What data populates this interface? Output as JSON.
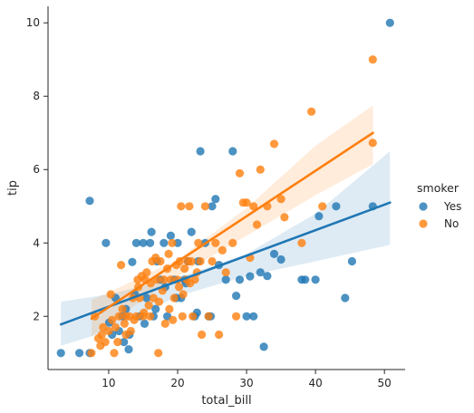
{
  "chart_data": {
    "type": "scatter",
    "title": "",
    "xlabel": "total_bill",
    "ylabel": "tip",
    "xlim": [
      1.2,
      53.0
    ],
    "ylim": [
      0.55,
      10.45
    ],
    "xticks": [
      10,
      20,
      30,
      40,
      50
    ],
    "yticks": [
      2,
      4,
      6,
      8,
      10
    ],
    "grid": false,
    "legend": {
      "title": "smoker",
      "placement": "right",
      "entries": [
        "Yes",
        "No"
      ]
    },
    "colors": {
      "Yes": "#1f77b4",
      "No": "#ff7f0e"
    },
    "series": [
      {
        "name": "Yes",
        "color": "#1f77b4",
        "points": [
          [
            3.07,
            1.0
          ],
          [
            5.75,
            1.0
          ],
          [
            7.25,
            5.15
          ],
          [
            9.6,
            4.0
          ],
          [
            7.25,
            1.0
          ],
          [
            10.07,
            1.83
          ],
          [
            12.9,
            1.1
          ],
          [
            13.42,
            3.48
          ],
          [
            14.0,
            4.0
          ],
          [
            15.0,
            4.0
          ],
          [
            16.0,
            4.0
          ],
          [
            16.2,
            4.3
          ],
          [
            17.0,
            3.5
          ],
          [
            18.0,
            4.0
          ],
          [
            19.0,
            4.2
          ],
          [
            20.0,
            4.0
          ],
          [
            21.0,
            3.0
          ],
          [
            22.0,
            4.3
          ],
          [
            23.0,
            3.5
          ],
          [
            23.3,
            6.5
          ],
          [
            24.0,
            4.0
          ],
          [
            24.5,
            2.0
          ],
          [
            25.0,
            5.0
          ],
          [
            25.5,
            5.2
          ],
          [
            26.0,
            3.4
          ],
          [
            27.0,
            3.0
          ],
          [
            28.0,
            6.5
          ],
          [
            28.5,
            2.56
          ],
          [
            29.0,
            3.0
          ],
          [
            30.0,
            2.0
          ],
          [
            30.5,
            3.09
          ],
          [
            31.0,
            2.0
          ],
          [
            32.0,
            3.2
          ],
          [
            32.5,
            1.17
          ],
          [
            33.0,
            3.1
          ],
          [
            34.0,
            3.7
          ],
          [
            35.0,
            3.55
          ],
          [
            38.0,
            3.0
          ],
          [
            38.5,
            3.0
          ],
          [
            40.0,
            3.0
          ],
          [
            40.5,
            4.73
          ],
          [
            43.0,
            5.0
          ],
          [
            44.3,
            2.5
          ],
          [
            45.3,
            3.5
          ],
          [
            48.3,
            5.0
          ],
          [
            50.8,
            10.0
          ],
          [
            11.0,
            2.5
          ],
          [
            12.0,
            2.0
          ],
          [
            13.0,
            1.5
          ],
          [
            14.5,
            2.0
          ],
          [
            15.5,
            2.5
          ],
          [
            16.5,
            2.0
          ],
          [
            17.5,
            3.0
          ],
          [
            18.5,
            2.0
          ],
          [
            19.5,
            3.0
          ],
          [
            20.5,
            2.5
          ],
          [
            21.5,
            3.5
          ],
          [
            22.5,
            2.0
          ],
          [
            12.5,
            2.2
          ],
          [
            13.8,
            2.6
          ],
          [
            15.2,
            1.8
          ],
          [
            16.8,
            2.2
          ],
          [
            18.2,
            2.8
          ],
          [
            19.8,
            2.5
          ],
          [
            21.2,
            2.9
          ],
          [
            22.8,
            2.1
          ],
          [
            24.8,
            2.0
          ],
          [
            10.5,
            1.5
          ],
          [
            11.5,
            1.6
          ],
          [
            12.2,
            1.3
          ]
        ],
        "fit": {
          "x": [
            3.07,
            50.81
          ],
          "y": [
            1.78,
            5.1
          ]
        }
      },
      {
        "name": "No",
        "color": "#ff7f0e",
        "points": [
          [
            7.5,
            1.0
          ],
          [
            8.0,
            2.0
          ],
          [
            8.5,
            1.4
          ],
          [
            9.0,
            1.5
          ],
          [
            9.5,
            1.3
          ],
          [
            10.0,
            1.6
          ],
          [
            10.3,
            2.6
          ],
          [
            10.5,
            1.9
          ],
          [
            11.0,
            1.7
          ],
          [
            11.5,
            2.0
          ],
          [
            11.8,
            3.4
          ],
          [
            12.0,
            2.2
          ],
          [
            12.5,
            1.5
          ],
          [
            13.0,
            2.0
          ],
          [
            13.5,
            2.5
          ],
          [
            14.0,
            2.0
          ],
          [
            14.2,
            3.0
          ],
          [
            14.5,
            2.5
          ],
          [
            15.0,
            2.0
          ],
          [
            15.3,
            3.0
          ],
          [
            15.5,
            3.2
          ],
          [
            16.0,
            2.0
          ],
          [
            16.3,
            3.5
          ],
          [
            16.5,
            2.5
          ],
          [
            17.0,
            3.0
          ],
          [
            17.2,
            1.0
          ],
          [
            17.5,
            3.5
          ],
          [
            18.0,
            3.0
          ],
          [
            18.2,
            1.8
          ],
          [
            18.5,
            3.3
          ],
          [
            19.0,
            3.0
          ],
          [
            19.2,
            4.0
          ],
          [
            19.5,
            2.5
          ],
          [
            20.0,
            3.0
          ],
          [
            20.3,
            3.5
          ],
          [
            20.5,
            5.0
          ],
          [
            20.7,
            2.0
          ],
          [
            21.0,
            3.3
          ],
          [
            21.3,
            3.0
          ],
          [
            21.5,
            3.5
          ],
          [
            21.7,
            5.0
          ],
          [
            22.0,
            3.5
          ],
          [
            22.2,
            2.0
          ],
          [
            22.5,
            3.0
          ],
          [
            23.0,
            4.0
          ],
          [
            23.3,
            3.5
          ],
          [
            23.5,
            1.5
          ],
          [
            24.0,
            5.0
          ],
          [
            24.5,
            2.0
          ],
          [
            25.0,
            3.5
          ],
          [
            25.5,
            4.0
          ],
          [
            26.0,
            1.5
          ],
          [
            26.5,
            3.8
          ],
          [
            27.0,
            3.2
          ],
          [
            28.0,
            4.0
          ],
          [
            28.5,
            2.0
          ],
          [
            29.0,
            5.9
          ],
          [
            29.5,
            5.1
          ],
          [
            30.0,
            5.1
          ],
          [
            30.5,
            3.6
          ],
          [
            31.0,
            5.0
          ],
          [
            31.5,
            4.5
          ],
          [
            32.0,
            6.0
          ],
          [
            33.0,
            5.0
          ],
          [
            34.0,
            6.7
          ],
          [
            35.0,
            5.2
          ],
          [
            35.5,
            4.7
          ],
          [
            39.4,
            7.58
          ],
          [
            38.0,
            4.0
          ],
          [
            41.0,
            5.0
          ],
          [
            48.3,
            9.0
          ],
          [
            48.3,
            6.73
          ],
          [
            12.5,
            2.0
          ],
          [
            13.2,
            1.6
          ],
          [
            14.8,
            3.1
          ],
          [
            15.8,
            2.3
          ],
          [
            16.8,
            3.6
          ],
          [
            17.8,
            2.7
          ],
          [
            18.8,
            2.2
          ],
          [
            19.8,
            3.4
          ],
          [
            20.8,
            2.6
          ],
          [
            21.8,
            2.9
          ],
          [
            22.8,
            3.2
          ],
          [
            10.8,
            1.0
          ],
          [
            11.3,
            1.3
          ],
          [
            12.3,
            1.8
          ],
          [
            13.7,
            1.9
          ],
          [
            14.3,
            2.8
          ],
          [
            15.1,
            2.1
          ],
          [
            16.1,
            2.9
          ],
          [
            17.3,
            2.4
          ],
          [
            18.7,
            3.7
          ],
          [
            19.3,
            1.9
          ],
          [
            20.2,
            2.8
          ],
          [
            9.2,
            1.7
          ],
          [
            8.8,
            1.2
          ]
        ],
        "fit": {
          "x": [
            7.51,
            48.33
          ],
          "y": [
            1.94,
            7.0
          ]
        }
      }
    ],
    "confidence_bands": {
      "Yes": {
        "x": [
          3.07,
          10,
          20,
          30,
          40,
          50.81
        ],
        "lower": [
          1.2,
          1.6,
          2.55,
          3.1,
          3.5,
          3.95
        ],
        "upper": [
          2.4,
          2.6,
          3.05,
          3.7,
          4.8,
          6.5
        ]
      },
      "No": {
        "x": [
          7.51,
          10,
          20,
          30,
          40,
          48.33
        ],
        "lower": [
          1.45,
          1.8,
          3.1,
          4.2,
          5.3,
          6.15
        ],
        "upper": [
          2.45,
          2.65,
          3.55,
          4.95,
          6.65,
          7.75
        ]
      }
    }
  }
}
